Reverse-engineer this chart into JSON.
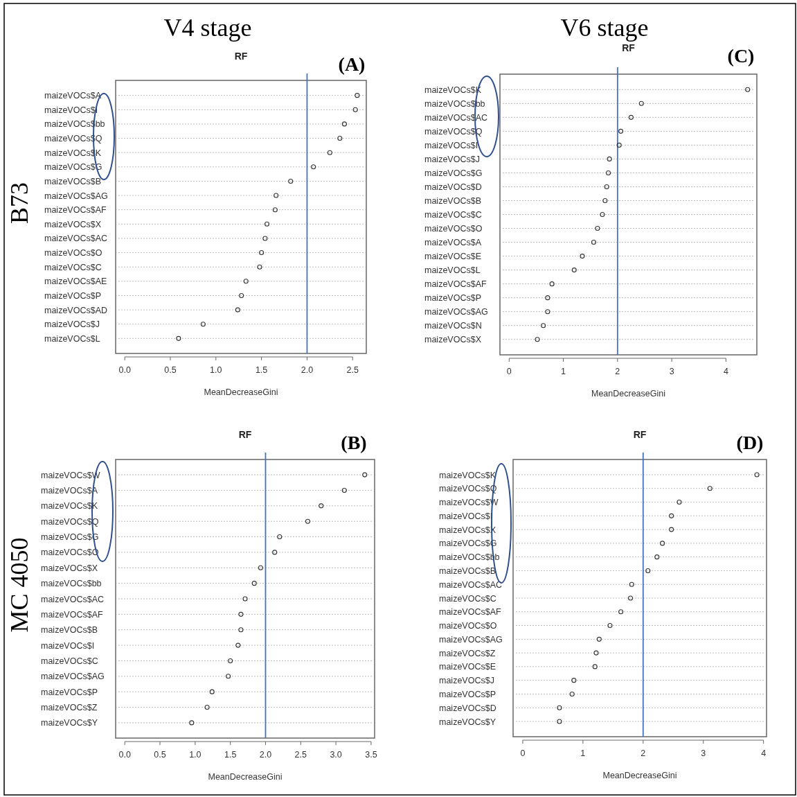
{
  "chart_data": [
    {
      "type": "scatter",
      "orientation": "horizontal",
      "title": "RF",
      "xlabel": "MeanDecreaseGini",
      "marker": "circle",
      "grid": "y",
      "color": "#333333",
      "categories": [
        "maizeVOCs$A",
        "maizeVOCs$I",
        "maizeVOCs$bb",
        "maizeVOCs$Q",
        "maizeVOCs$K",
        "maizeVOCs$G",
        "maizeVOCs$B",
        "maizeVOCs$AG",
        "maizeVOCs$AF",
        "maizeVOCs$X",
        "maizeVOCs$AC",
        "maizeVOCs$O",
        "maizeVOCs$C",
        "maizeVOCs$AE",
        "maizeVOCs$P",
        "maizeVOCs$AD",
        "maizeVOCs$J",
        "maizeVOCs$L"
      ],
      "values": [
        2.55,
        2.53,
        2.41,
        2.36,
        2.25,
        2.07,
        1.82,
        1.66,
        1.65,
        1.56,
        1.54,
        1.5,
        1.48,
        1.33,
        1.28,
        1.24,
        0.86,
        0.59
      ],
      "xlim": [
        -0.1,
        2.65
      ],
      "xticks": [
        {
          "value": 0,
          "label": "0.0"
        },
        0.5,
        {
          "value": 1,
          "label": "1.0"
        },
        1.5,
        {
          "value": 2,
          "label": "2.0"
        },
        2.5
      ],
      "ref_lines": [
        {
          "axis": "x",
          "value": 2,
          "color": "#4472c4"
        }
      ],
      "annotations": [
        "(A)",
        "V4 stage",
        "B73"
      ]
    },
    {
      "type": "scatter",
      "orientation": "horizontal",
      "title": "RF",
      "xlabel": "MeanDecreaseGini",
      "marker": "circle",
      "grid": "y",
      "color": "#333333",
      "categories": [
        "maizeVOCs$K",
        "maizeVOCs$bb",
        "maizeVOCs$AC",
        "maizeVOCs$Q",
        "maizeVOCs$I",
        "maizeVOCs$J",
        "maizeVOCs$G",
        "maizeVOCs$D",
        "maizeVOCs$B",
        "maizeVOCs$C",
        "maizeVOCs$O",
        "maizeVOCs$A",
        "maizeVOCs$E",
        "maizeVOCs$L",
        "maizeVOCs$AF",
        "maizeVOCs$P",
        "maizeVOCs$AG",
        "maizeVOCs$N",
        "maizeVOCs$X"
      ],
      "values": [
        4.4,
        2.44,
        2.25,
        2.06,
        2.03,
        1.85,
        1.83,
        1.8,
        1.77,
        1.72,
        1.63,
        1.56,
        1.35,
        1.2,
        0.79,
        0.71,
        0.71,
        0.63,
        0.52
      ],
      "xlim": [
        -0.17,
        4.57
      ],
      "xticks": [
        0,
        1,
        2,
        3,
        4
      ],
      "ref_lines": [
        {
          "axis": "x",
          "value": 2,
          "color": "#4472c4"
        }
      ],
      "annotations": [
        "(C)",
        "V6 stage"
      ]
    },
    {
      "type": "scatter",
      "orientation": "horizontal",
      "title": "RF",
      "xlabel": "MeanDecreaseGini",
      "marker": "circle",
      "grid": "y",
      "color": "#333333",
      "categories": [
        "maizeVOCs$W",
        "maizeVOCs$A",
        "maizeVOCs$K",
        "maizeVOCs$Q",
        "maizeVOCs$G",
        "maizeVOCs$O",
        "maizeVOCs$X",
        "maizeVOCs$bb",
        "maizeVOCs$AC",
        "maizeVOCs$AF",
        "maizeVOCs$B",
        "maizeVOCs$I",
        "maizeVOCs$C",
        "maizeVOCs$AG",
        "maizeVOCs$P",
        "maizeVOCs$Z",
        "maizeVOCs$Y"
      ],
      "values": [
        3.41,
        3.12,
        2.79,
        2.6,
        2.2,
        2.13,
        1.93,
        1.84,
        1.71,
        1.65,
        1.65,
        1.61,
        1.5,
        1.47,
        1.24,
        1.17,
        0.95
      ],
      "xlim": [
        -0.13,
        3.55
      ],
      "xticks": [
        {
          "value": 0,
          "label": "0.0"
        },
        0.5,
        {
          "value": 1,
          "label": "1.0"
        },
        1.5,
        {
          "value": 2,
          "label": "2.0"
        },
        2.5,
        {
          "value": 3,
          "label": "3.0"
        },
        3.5
      ],
      "ref_lines": [
        {
          "axis": "x",
          "value": 2,
          "color": "#4472c4"
        }
      ],
      "annotations": [
        "(B)",
        "MC 4050"
      ]
    },
    {
      "type": "scatter",
      "orientation": "horizontal",
      "title": "RF",
      "xlabel": "MeanDecreaseGini",
      "marker": "circle",
      "grid": "y",
      "color": "#333333",
      "categories": [
        "maizeVOCs$K",
        "maizeVOCs$Q",
        "maizeVOCs$W",
        "maizeVOCs$I",
        "maizeVOCs$X",
        "maizeVOCs$G",
        "maizeVOCs$bb",
        "maizeVOCs$B",
        "maizeVOCs$AC",
        "maizeVOCs$C",
        "maizeVOCs$AF",
        "maizeVOCs$O",
        "maizeVOCs$AG",
        "maizeVOCs$Z",
        "maizeVOCs$E",
        "maizeVOCs$J",
        "maizeVOCs$P",
        "maizeVOCs$D",
        "maizeVOCs$Y"
      ],
      "values": [
        3.89,
        3.11,
        2.6,
        2.47,
        2.47,
        2.32,
        2.23,
        2.08,
        1.81,
        1.79,
        1.63,
        1.45,
        1.27,
        1.22,
        1.2,
        0.85,
        0.82,
        0.61,
        0.61
      ],
      "xlim": [
        -0.16,
        4.05
      ],
      "xticks": [
        0,
        1,
        2,
        3,
        4
      ],
      "ref_lines": [
        {
          "axis": "x",
          "value": 2,
          "color": "#4472c4"
        }
      ],
      "annotations": [
        "(D)"
      ]
    }
  ]
}
